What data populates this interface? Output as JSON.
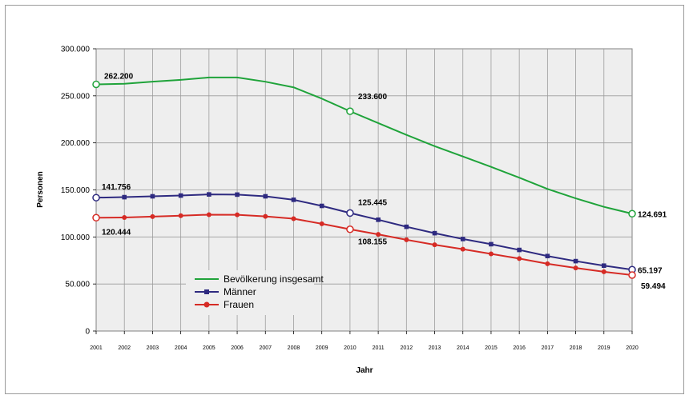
{
  "chart_data": {
    "type": "line",
    "xlabel": "Jahr",
    "ylabel": "Personen",
    "ylim": [
      0,
      300000
    ],
    "y_ticks": [
      "0",
      "50.000",
      "100.000",
      "150.000",
      "200.000",
      "250.000",
      "300.000"
    ],
    "y_tick_values": [
      0,
      50000,
      100000,
      150000,
      200000,
      250000,
      300000
    ],
    "x": [
      "2001",
      "2002",
      "2003",
      "2004",
      "2005",
      "2006",
      "2007",
      "2008",
      "2009",
      "2010",
      "2011",
      "2012",
      "2013",
      "2014",
      "2015",
      "2016",
      "2017",
      "2018",
      "2019",
      "2020"
    ],
    "grid": true,
    "legend_position": "bottom-center",
    "series": [
      {
        "name": "Bevölkerung insgesamt",
        "color": "#1fa33a",
        "values": [
          262200,
          262800,
          265000,
          267000,
          269500,
          269500,
          265000,
          259000,
          247000,
          233600,
          221000,
          208500,
          196500,
          185500,
          174500,
          163000,
          151000,
          141000,
          132000,
          124691
        ]
      },
      {
        "name": "Männer",
        "color": "#2e2a80",
        "values": [
          141756,
          142300,
          143200,
          144000,
          145200,
          145000,
          143200,
          139500,
          133000,
          125445,
          118300,
          110800,
          104000,
          97800,
          92300,
          86200,
          79700,
          74300,
          69500,
          65197
        ]
      },
      {
        "name": "Frauen",
        "color": "#d62b25",
        "values": [
          120444,
          120700,
          121600,
          122600,
          123700,
          123500,
          121800,
          119400,
          114000,
          108155,
          102700,
          97000,
          91700,
          87000,
          82000,
          77000,
          71500,
          67000,
          63000,
          59494
        ]
      }
    ],
    "data_labels": [
      {
        "series": 0,
        "index": 0,
        "text": "262.200"
      },
      {
        "series": 0,
        "index": 9,
        "text": "233.600"
      },
      {
        "series": 0,
        "index": 19,
        "text": "124.691"
      },
      {
        "series": 1,
        "index": 0,
        "text": "141.756"
      },
      {
        "series": 1,
        "index": 9,
        "text": "125.445"
      },
      {
        "series": 1,
        "index": 19,
        "text": "65.197"
      },
      {
        "series": 2,
        "index": 0,
        "text": "120.444"
      },
      {
        "series": 2,
        "index": 9,
        "text": "108.155"
      },
      {
        "series": 2,
        "index": 19,
        "text": "59.494"
      }
    ]
  }
}
